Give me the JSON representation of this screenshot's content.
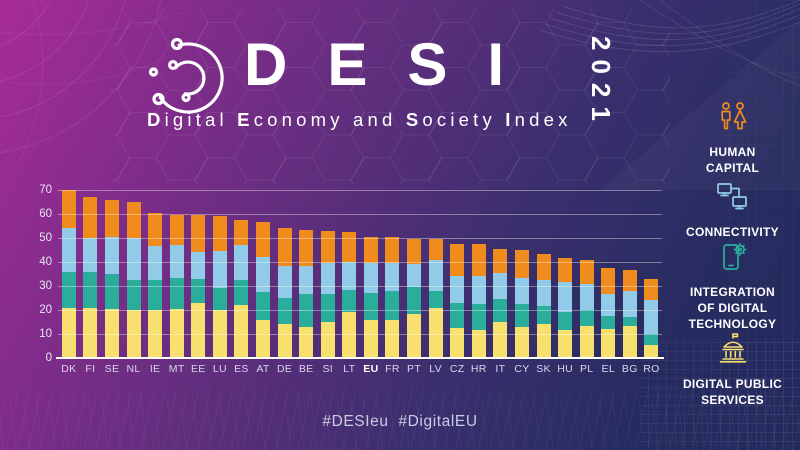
{
  "header": {
    "title": "DESI",
    "year": "2021",
    "subtitle_parts": [
      {
        "bold": "D",
        "rest": "igital "
      },
      {
        "bold": "E",
        "rest": "conomy "
      },
      {
        "bold": "",
        "rest": "and "
      },
      {
        "bold": "S",
        "rest": "ociety "
      },
      {
        "bold": "I",
        "rest": "ndex"
      }
    ]
  },
  "chart_data": {
    "type": "bar",
    "stacked": true,
    "title": "",
    "categories": [
      "DK",
      "FI",
      "SE",
      "NL",
      "IE",
      "MT",
      "EE",
      "LU",
      "ES",
      "AT",
      "DE",
      "BE",
      "SI",
      "LT",
      "EU",
      "FR",
      "PT",
      "LV",
      "CZ",
      "HR",
      "IT",
      "CY",
      "SK",
      "HU",
      "PL",
      "EL",
      "BG",
      "RO"
    ],
    "highlight_category": "EU",
    "series": [
      {
        "name": "Digital Public Services",
        "color": "#F7E06E",
        "values": [
          21,
          21,
          20.5,
          20,
          20,
          20.5,
          23,
          20,
          22,
          16,
          14,
          13,
          15,
          19,
          16,
          16,
          18.5,
          21,
          12.5,
          11.5,
          15,
          13,
          14,
          11.5,
          13.5,
          12,
          13.5,
          5.5
        ]
      },
      {
        "name": "Integration of Digital Technology",
        "color": "#2BAD9B",
        "values": [
          15,
          15,
          14.5,
          12.5,
          12.5,
          13,
          10,
          9,
          10.5,
          11.5,
          11,
          13.5,
          11.5,
          9.5,
          11,
          12,
          11,
          7,
          10.5,
          11,
          9.5,
          9.5,
          7.5,
          7.5,
          6.5,
          5.5,
          3.5,
          4.5
        ]
      },
      {
        "name": "Connectivity",
        "color": "#92CBE8",
        "values": [
          18,
          14,
          15.5,
          17.5,
          14,
          13.5,
          11,
          15.5,
          14.5,
          14.5,
          13.5,
          12,
          13,
          11.5,
          12.5,
          11.5,
          9.5,
          13,
          11,
          11.5,
          11,
          11,
          11,
          12.5,
          11,
          9,
          11,
          14
        ]
      },
      {
        "name": "Human Capital",
        "color": "#F08B1E",
        "values": [
          16,
          17,
          15.5,
          15,
          14,
          12.5,
          15.5,
          14.5,
          10.5,
          14.5,
          15.5,
          15,
          13.5,
          12.5,
          11,
          11,
          10.5,
          8.5,
          13.5,
          13.5,
          10,
          11.5,
          11,
          10,
          10,
          11,
          8.5,
          9
        ]
      }
    ],
    "ylim": [
      0,
      70
    ],
    "yticks": [
      0,
      10,
      20,
      30,
      40,
      50,
      60,
      70
    ],
    "grid": true,
    "legend_position": "right"
  },
  "sidebar": {
    "items": [
      {
        "id": "human-capital",
        "label": "HUMAN\nCAPITAL",
        "color": "#F08B1E"
      },
      {
        "id": "connectivity",
        "label": "CONNECTIVITY",
        "color": "#92CBE8"
      },
      {
        "id": "integration-of-digital-technology",
        "label": "INTEGRATION\nOF DIGITAL\nTECHNOLOGY",
        "color": "#2BAD9B"
      },
      {
        "id": "digital-public-services",
        "label": "DIGITAL PUBLIC\nSERVICES",
        "color": "#F7E06E"
      }
    ]
  },
  "footer": {
    "hashtags": "#DESIeu  #DigitalEU"
  },
  "colors": {
    "background_start": "#A82C97",
    "background_end": "#232A5C",
    "axis_text": "#E9E6F6",
    "hashtag_text": "#C9CCE4"
  }
}
